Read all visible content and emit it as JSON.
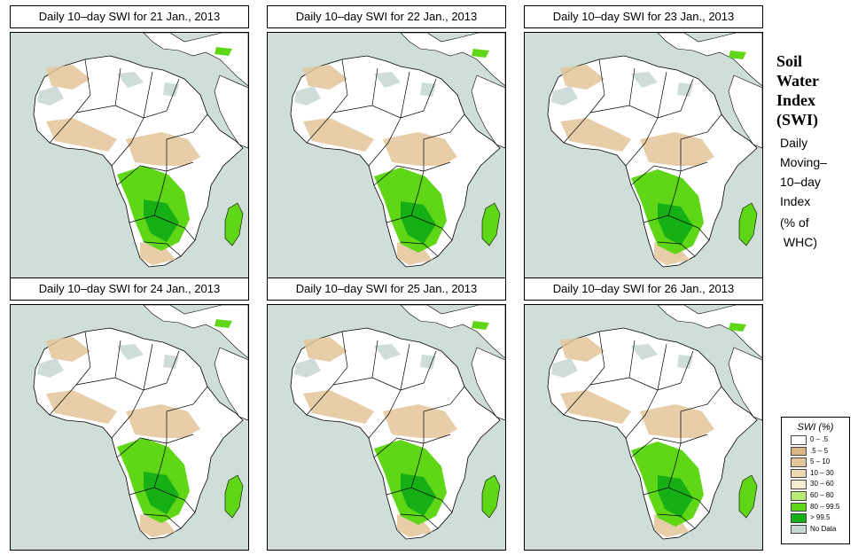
{
  "panels": [
    {
      "title": "Daily 10–day SWI for  21 Jan., 2013"
    },
    {
      "title": "Daily 10–day SWI for  22 Jan., 2013"
    },
    {
      "title": "Daily 10–day SWI for  23 Jan., 2013"
    },
    {
      "title": "Daily 10–day SWI for  24 Jan., 2013"
    },
    {
      "title": "Daily 10–day SWI for  25 Jan., 2013"
    },
    {
      "title": "Daily 10–day SWI for  26 Jan., 2013"
    }
  ],
  "side": {
    "title_lines": [
      "Soil",
      "Water",
      "Index",
      "(SWI)"
    ],
    "desc_lines": [
      "Daily",
      "Moving–",
      "10–day",
      "Index"
    ],
    "unit_lines": [
      "(% of",
      " WHC)"
    ]
  },
  "legend": {
    "title": "SWI (%)",
    "items": [
      {
        "label": "0 – .5",
        "color": "#ffffff"
      },
      {
        "label": ".5 – 5",
        "color": "#d8b784"
      },
      {
        "label": "5 – 10",
        "color": "#e3c69a"
      },
      {
        "label": "10 – 30",
        "color": "#eed9b6"
      },
      {
        "label": "30 – 60",
        "color": "#f6ecd0"
      },
      {
        "label": "60 – 80",
        "color": "#b8ea74"
      },
      {
        "label": "80 – 99.5",
        "color": "#5fd616"
      },
      {
        "label": "> 99.5",
        "color": "#16b016"
      },
      {
        "label": "No Data",
        "color": "#c9d9d5"
      }
    ]
  },
  "colors": {
    "ocean": "#cfded6",
    "land": "#ffffff",
    "dry": "#e3c69a",
    "arid_gray": "#c9d9d5",
    "wet": "#5fd616",
    "very_wet": "#16b016",
    "border": "#000000"
  }
}
